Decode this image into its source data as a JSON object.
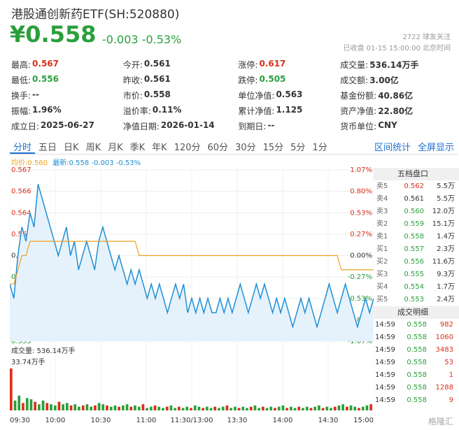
{
  "header": {
    "title": "港股通创新药ETF(SH:520880)",
    "price": "¥0.558",
    "change": "-0.003  -0.53%",
    "follow": "2722  球友关注",
    "status": "已收盘  01-15  15:00:00  北京时间"
  },
  "stats": [
    [
      {
        "label": "最高:",
        "value": "0.567",
        "color": "red"
      },
      {
        "label": "今开:",
        "value": "0.561",
        "color": ""
      },
      {
        "label": "涨停:",
        "value": "0.617",
        "color": "red"
      },
      {
        "label": "成交量:",
        "value": "536.14万手",
        "color": ""
      }
    ],
    [
      {
        "label": "最低:",
        "value": "0.556",
        "color": "green"
      },
      {
        "label": "昨收:",
        "value": "0.561",
        "color": ""
      },
      {
        "label": "跌停:",
        "value": "0.505",
        "color": "green"
      },
      {
        "label": "成交额:",
        "value": "3.00亿",
        "color": ""
      }
    ],
    [
      {
        "label": "换手:",
        "value": "--",
        "color": ""
      },
      {
        "label": "市价:",
        "value": "0.558",
        "color": ""
      },
      {
        "label": "单位净值:",
        "value": "0.563",
        "color": ""
      },
      {
        "label": "基金份额:",
        "value": "40.86亿",
        "color": ""
      }
    ],
    [
      {
        "label": "振幅:",
        "value": "1.96%",
        "color": ""
      },
      {
        "label": "溢价率:",
        "value": "0.11%",
        "color": ""
      },
      {
        "label": "累计净值:",
        "value": "1.125",
        "color": ""
      },
      {
        "label": "资产净值:",
        "value": "22.80亿",
        "color": ""
      }
    ],
    [
      {
        "label": "成立日:",
        "value": "2025-06-27",
        "color": ""
      },
      {
        "label": "净值日期:",
        "value": "2026-01-14",
        "color": ""
      },
      {
        "label": "到期日:",
        "value": "--",
        "color": ""
      },
      {
        "label": "货币单位:",
        "value": "CNY",
        "color": ""
      }
    ]
  ],
  "tabs": [
    "分时",
    "五日",
    "日K",
    "周K",
    "月K",
    "季K",
    "年K",
    "120分",
    "60分",
    "30分",
    "15分",
    "5分",
    "1分"
  ],
  "tabs_right": [
    "区间统计",
    "全屏显示"
  ],
  "legend": {
    "avg": "均价:0.560",
    "latest": "最新:0.558 -0.003 -0.53%"
  },
  "chart_data": {
    "type": "line",
    "y_ticks_left": [
      "0.567",
      "0.566",
      "0.564",
      "0.563",
      "0.561",
      "0.560",
      "0.558",
      "0.557",
      "0.555"
    ],
    "y_ticks_right": [
      "1.07%",
      "0.80%",
      "0.53%",
      "0.27%",
      "0.00%",
      "-0.27%",
      "-0.53%",
      "-0.80%",
      "-1.07%"
    ],
    "ylim": [
      0.555,
      0.567
    ],
    "x_ticks": [
      "09:30",
      "10:00",
      "10:30",
      "11:00",
      "11:30/13:00",
      "13:30",
      "14:00",
      "14:30",
      "15:00"
    ],
    "volume_label": "成交量: 536.14万手",
    "volume_max_label": "33.74万手",
    "series": [
      {
        "name": "最新",
        "color": "#1e8fd6",
        "values": [
          0.559,
          0.558,
          0.561,
          0.563,
          0.562,
          0.564,
          0.563,
          0.566,
          0.565,
          0.564,
          0.563,
          0.562,
          0.561,
          0.562,
          0.563,
          0.561,
          0.562,
          0.56,
          0.561,
          0.562,
          0.561,
          0.56,
          0.562,
          0.563,
          0.562,
          0.561,
          0.56,
          0.561,
          0.56,
          0.559,
          0.56,
          0.559,
          0.56,
          0.559,
          0.558,
          0.559,
          0.558,
          0.559,
          0.558,
          0.557,
          0.558,
          0.559,
          0.558,
          0.559,
          0.557,
          0.558,
          0.557,
          0.558,
          0.557,
          0.558,
          0.557,
          0.557,
          0.558,
          0.557,
          0.558,
          0.557,
          0.558,
          0.559,
          0.558,
          0.557,
          0.558,
          0.559,
          0.558,
          0.559,
          0.558,
          0.557,
          0.558,
          0.557,
          0.558,
          0.557,
          0.556,
          0.557,
          0.558,
          0.557,
          0.558,
          0.557,
          0.556,
          0.557,
          0.558,
          0.559,
          0.558,
          0.557,
          0.558,
          0.559,
          0.558,
          0.557,
          0.556,
          0.557,
          0.558,
          0.557,
          0.558
        ]
      },
      {
        "name": "均价",
        "color": "#f0a020",
        "values": [
          0.559,
          0.559,
          0.56,
          0.561,
          0.561,
          0.562,
          0.562,
          0.562,
          0.562,
          0.562,
          0.562,
          0.562,
          0.562,
          0.562,
          0.562,
          0.562,
          0.562,
          0.562,
          0.562,
          0.562,
          0.562,
          0.562,
          0.562,
          0.562,
          0.562,
          0.562,
          0.562,
          0.562,
          0.562,
          0.562,
          0.562,
          0.562,
          0.561,
          0.561,
          0.561,
          0.561,
          0.561,
          0.561,
          0.561,
          0.561,
          0.561,
          0.561,
          0.561,
          0.561,
          0.561,
          0.561,
          0.561,
          0.561,
          0.561,
          0.561,
          0.561,
          0.561,
          0.561,
          0.561,
          0.561,
          0.561,
          0.561,
          0.561,
          0.561,
          0.561,
          0.561,
          0.561,
          0.561,
          0.561,
          0.561,
          0.561,
          0.561,
          0.561,
          0.561,
          0.561,
          0.561,
          0.561,
          0.561,
          0.561,
          0.561,
          0.561,
          0.561,
          0.561,
          0.561,
          0.561,
          0.561,
          0.561,
          0.56,
          0.56,
          0.56,
          0.56,
          0.56,
          0.56,
          0.56,
          0.56,
          0.56
        ]
      }
    ],
    "volumes": [
      34,
      8,
      12,
      6,
      10,
      9,
      7,
      5,
      8,
      6,
      5,
      4,
      7,
      5,
      6,
      4,
      5,
      3,
      4,
      5,
      3,
      4,
      6,
      5,
      4,
      3,
      4,
      3,
      4,
      5,
      3,
      4,
      3,
      5,
      2,
      3,
      4,
      3,
      2,
      3,
      4,
      2,
      3,
      2,
      3,
      2,
      4,
      3,
      2,
      3,
      2,
      3,
      2,
      3,
      4,
      2,
      3,
      2,
      3,
      2,
      3,
      4,
      2,
      3,
      2,
      3,
      2,
      3,
      4,
      2,
      3,
      2,
      3,
      2,
      3,
      2,
      3,
      4,
      2,
      3,
      2,
      3,
      4,
      5,
      3,
      4,
      3,
      2,
      3,
      4,
      5
    ]
  },
  "orderbook": {
    "title": "五档盘口",
    "rows": [
      {
        "label": "卖5",
        "price": "0.562",
        "vol": "5.5万",
        "color": "red"
      },
      {
        "label": "卖4",
        "price": "0.561",
        "vol": "5.5万",
        "color": ""
      },
      {
        "label": "卖3",
        "price": "0.560",
        "vol": "12.0万",
        "color": "green"
      },
      {
        "label": "卖2",
        "price": "0.559",
        "vol": "15.1万",
        "color": "green"
      },
      {
        "label": "卖1",
        "price": "0.558",
        "vol": "1.4万",
        "color": "green"
      },
      {
        "label": "买1",
        "price": "0.557",
        "vol": "2.3万",
        "color": "green"
      },
      {
        "label": "买2",
        "price": "0.556",
        "vol": "11.6万",
        "color": "green"
      },
      {
        "label": "买3",
        "price": "0.555",
        "vol": "9.3万",
        "color": "green"
      },
      {
        "label": "买4",
        "price": "0.554",
        "vol": "1.7万",
        "color": "green"
      },
      {
        "label": "买5",
        "price": "0.553",
        "vol": "2.4万",
        "color": "green"
      }
    ],
    "trades_title": "成交明细",
    "trades": [
      {
        "time": "14:59",
        "price": "0.558",
        "vol": "982"
      },
      {
        "time": "14:59",
        "price": "0.558",
        "vol": "1060"
      },
      {
        "time": "14:59",
        "price": "0.558",
        "vol": "3483"
      },
      {
        "time": "14:59",
        "price": "0.558",
        "vol": "53"
      },
      {
        "time": "14:59",
        "price": "0.558",
        "vol": "1"
      },
      {
        "time": "14:59",
        "price": "0.558",
        "vol": "1288"
      },
      {
        "time": "14:59",
        "price": "0.558",
        "vol": "9"
      }
    ]
  },
  "watermark": "格隆汇"
}
